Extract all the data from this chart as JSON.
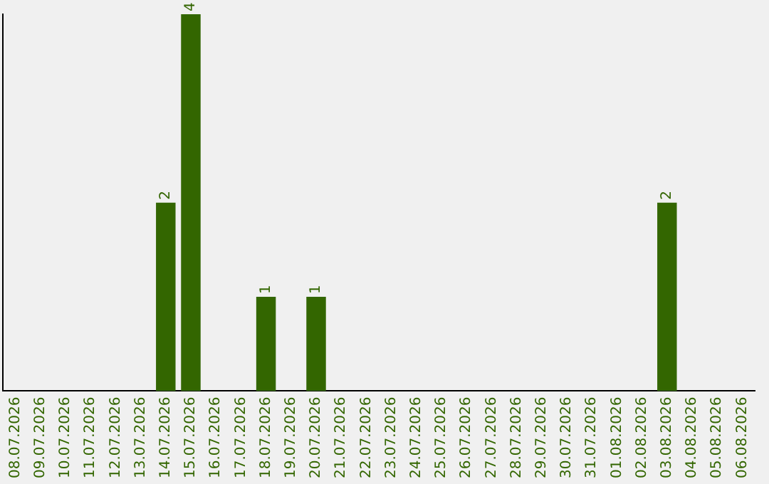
{
  "chart_data": {
    "type": "bar",
    "categories": [
      "08.07.2026",
      "09.07.2026",
      "10.07.2026",
      "11.07.2026",
      "12.07.2026",
      "13.07.2026",
      "14.07.2026",
      "15.07.2026",
      "16.07.2026",
      "17.07.2026",
      "18.07.2026",
      "19.07.2026",
      "20.07.2026",
      "21.07.2026",
      "22.07.2026",
      "23.07.2026",
      "24.07.2026",
      "25.07.2026",
      "26.07.2026",
      "27.07.2026",
      "28.07.2026",
      "29.07.2026",
      "30.07.2026",
      "31.07.2026",
      "01.08.2026",
      "02.08.2026",
      "03.08.2026",
      "04.08.2026",
      "05.08.2026",
      "06.08.2026"
    ],
    "values": [
      0,
      0,
      0,
      0,
      0,
      0,
      2,
      4,
      0,
      0,
      1,
      0,
      1,
      0,
      0,
      0,
      0,
      0,
      0,
      0,
      0,
      0,
      0,
      0,
      0,
      0,
      2,
      0,
      0,
      0
    ],
    "value_labels": [
      null,
      null,
      null,
      null,
      null,
      null,
      "2",
      "4",
      null,
      null,
      "1",
      null,
      "1",
      null,
      null,
      null,
      null,
      null,
      null,
      null,
      null,
      null,
      null,
      null,
      null,
      null,
      "2",
      null,
      null,
      null
    ],
    "color": "#336600",
    "grid": false,
    "legend": false
  }
}
